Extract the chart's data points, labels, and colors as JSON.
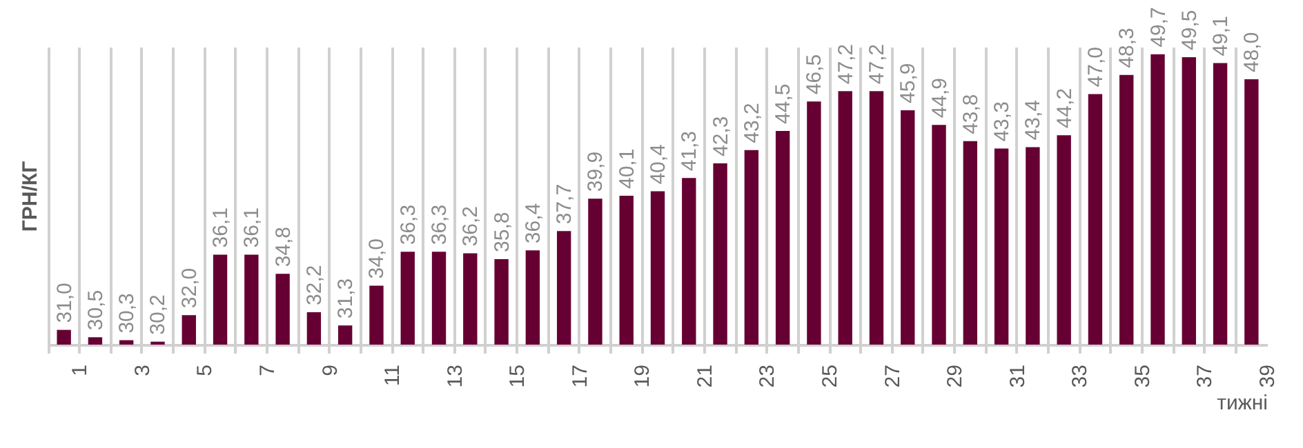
{
  "chart_data": {
    "type": "bar",
    "xlabel": "тижні",
    "ylabel": "ГРН/КГ",
    "categories": [
      "1",
      null,
      "3",
      null,
      "5",
      null,
      "7",
      null,
      "9",
      null,
      "11",
      null,
      "13",
      null,
      "15",
      null,
      "17",
      null,
      "19",
      null,
      "21",
      null,
      "23",
      null,
      "25",
      null,
      "27",
      null,
      "29",
      null,
      "31",
      null,
      "33",
      null,
      "35",
      null,
      "37",
      null,
      "39"
    ],
    "values": [
      31.0,
      30.5,
      30.3,
      30.2,
      32.0,
      36.1,
      36.1,
      34.8,
      32.2,
      31.3,
      34.0,
      36.3,
      36.3,
      36.2,
      35.8,
      36.4,
      37.7,
      39.9,
      40.1,
      40.4,
      41.3,
      42.3,
      43.2,
      44.5,
      46.5,
      47.2,
      47.2,
      45.9,
      44.9,
      43.8,
      43.3,
      43.4,
      44.2,
      47.0,
      48.3,
      49.7,
      49.5,
      49.1,
      48.0
    ],
    "value_labels": [
      "31,0",
      "30,5",
      "30,3",
      "30,2",
      "32,0",
      "36,1",
      "36,1",
      "34,8",
      "32,2",
      "31,3",
      "34,0",
      "36,3",
      "36,3",
      "36,2",
      "35,8",
      "36,4",
      "37,7",
      "39,9",
      "40,1",
      "40,4",
      "41,3",
      "42,3",
      "43,2",
      "44,5",
      "46,5",
      "47,2",
      "47,2",
      "45,9",
      "44,9",
      "43,8",
      "43,3",
      "43,4",
      "44,2",
      "47,0",
      "48,3",
      "49,7",
      "49,5",
      "49,1",
      "48,0"
    ],
    "color": "#660033",
    "ylim": [
      30,
      50.2
    ],
    "grid": "x",
    "tick_labels": "x"
  }
}
